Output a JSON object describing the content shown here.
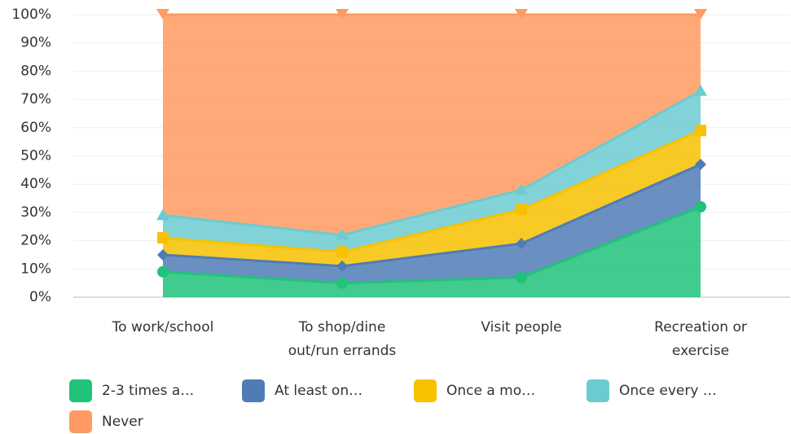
{
  "chart_data": {
    "type": "stacked-area",
    "categories": [
      "To work/school",
      "To shop/dine out/run errands",
      "Visit people",
      "Recreation or exercise"
    ],
    "series": [
      {
        "name": "2-3 times a…",
        "color": "#21c27a",
        "values": [
          9,
          5,
          7,
          32
        ]
      },
      {
        "name": "At least on…",
        "color": "#507cb6",
        "values": [
          6,
          6,
          12,
          15
        ]
      },
      {
        "name": "Once a mo…",
        "color": "#f7c100",
        "values": [
          6,
          5,
          12,
          12
        ]
      },
      {
        "name": "Once every …",
        "color": "#6ccbd0",
        "values": [
          8,
          6,
          7,
          14
        ]
      },
      {
        "name": "Never",
        "color": "#ff9a62",
        "values": [
          71,
          78,
          62,
          27
        ]
      }
    ],
    "ylim": [
      0,
      100
    ],
    "yticks": [
      {
        "value": 0,
        "label": "0%"
      },
      {
        "value": 10,
        "label": "10%"
      },
      {
        "value": 20,
        "label": "20%"
      },
      {
        "value": 30,
        "label": "30%"
      },
      {
        "value": 40,
        "label": "40%"
      },
      {
        "value": 50,
        "label": "50%"
      },
      {
        "value": 60,
        "label": "60%"
      },
      {
        "value": 70,
        "label": "70%"
      },
      {
        "value": 80,
        "label": "80%"
      },
      {
        "value": 90,
        "label": "90%"
      },
      {
        "value": 100,
        "label": "100%"
      }
    ],
    "grid": true
  }
}
